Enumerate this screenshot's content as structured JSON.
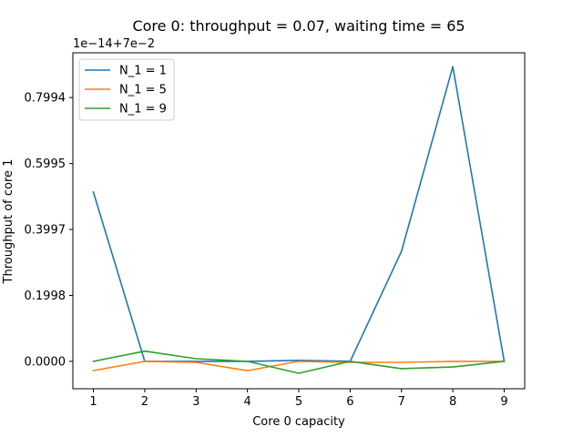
{
  "chart_data": {
    "type": "line",
    "title": "Core 0: throughput = 0.07, waiting time = 65",
    "xlabel": "Core 0 capacity",
    "ylabel": "Throughput of core 1",
    "offset_text": "1e−14+7e−2",
    "x": [
      1,
      2,
      3,
      4,
      5,
      6,
      7,
      8,
      9
    ],
    "x_ticks": [
      "1",
      "2",
      "3",
      "4",
      "5",
      "6",
      "7",
      "8",
      "9"
    ],
    "y_ticks": [
      "0.0000",
      "0.1998",
      "0.3997",
      "0.5995",
      "0.7994"
    ],
    "xlim": [
      0.6,
      9.4
    ],
    "ylim": [
      -0.083,
      0.935
    ],
    "legend_position": "upper-left",
    "series": [
      {
        "name": "N_1 = 1",
        "color": "#1f77b4",
        "values": [
          0.513,
          0.0,
          0.0,
          0.0,
          0.003,
          0.0,
          0.333,
          0.893,
          0.0
        ]
      },
      {
        "name": "N_1 = 5",
        "color": "#ff7f0e",
        "values": [
          -0.028,
          0.0,
          -0.003,
          -0.028,
          0.0,
          -0.003,
          -0.003,
          0.0,
          0.0
        ]
      },
      {
        "name": "N_1 = 9",
        "color": "#2ca02c",
        "values": [
          0.0,
          0.031,
          0.008,
          0.0,
          -0.036,
          0.0,
          -0.022,
          -0.017,
          0.0
        ]
      }
    ]
  }
}
